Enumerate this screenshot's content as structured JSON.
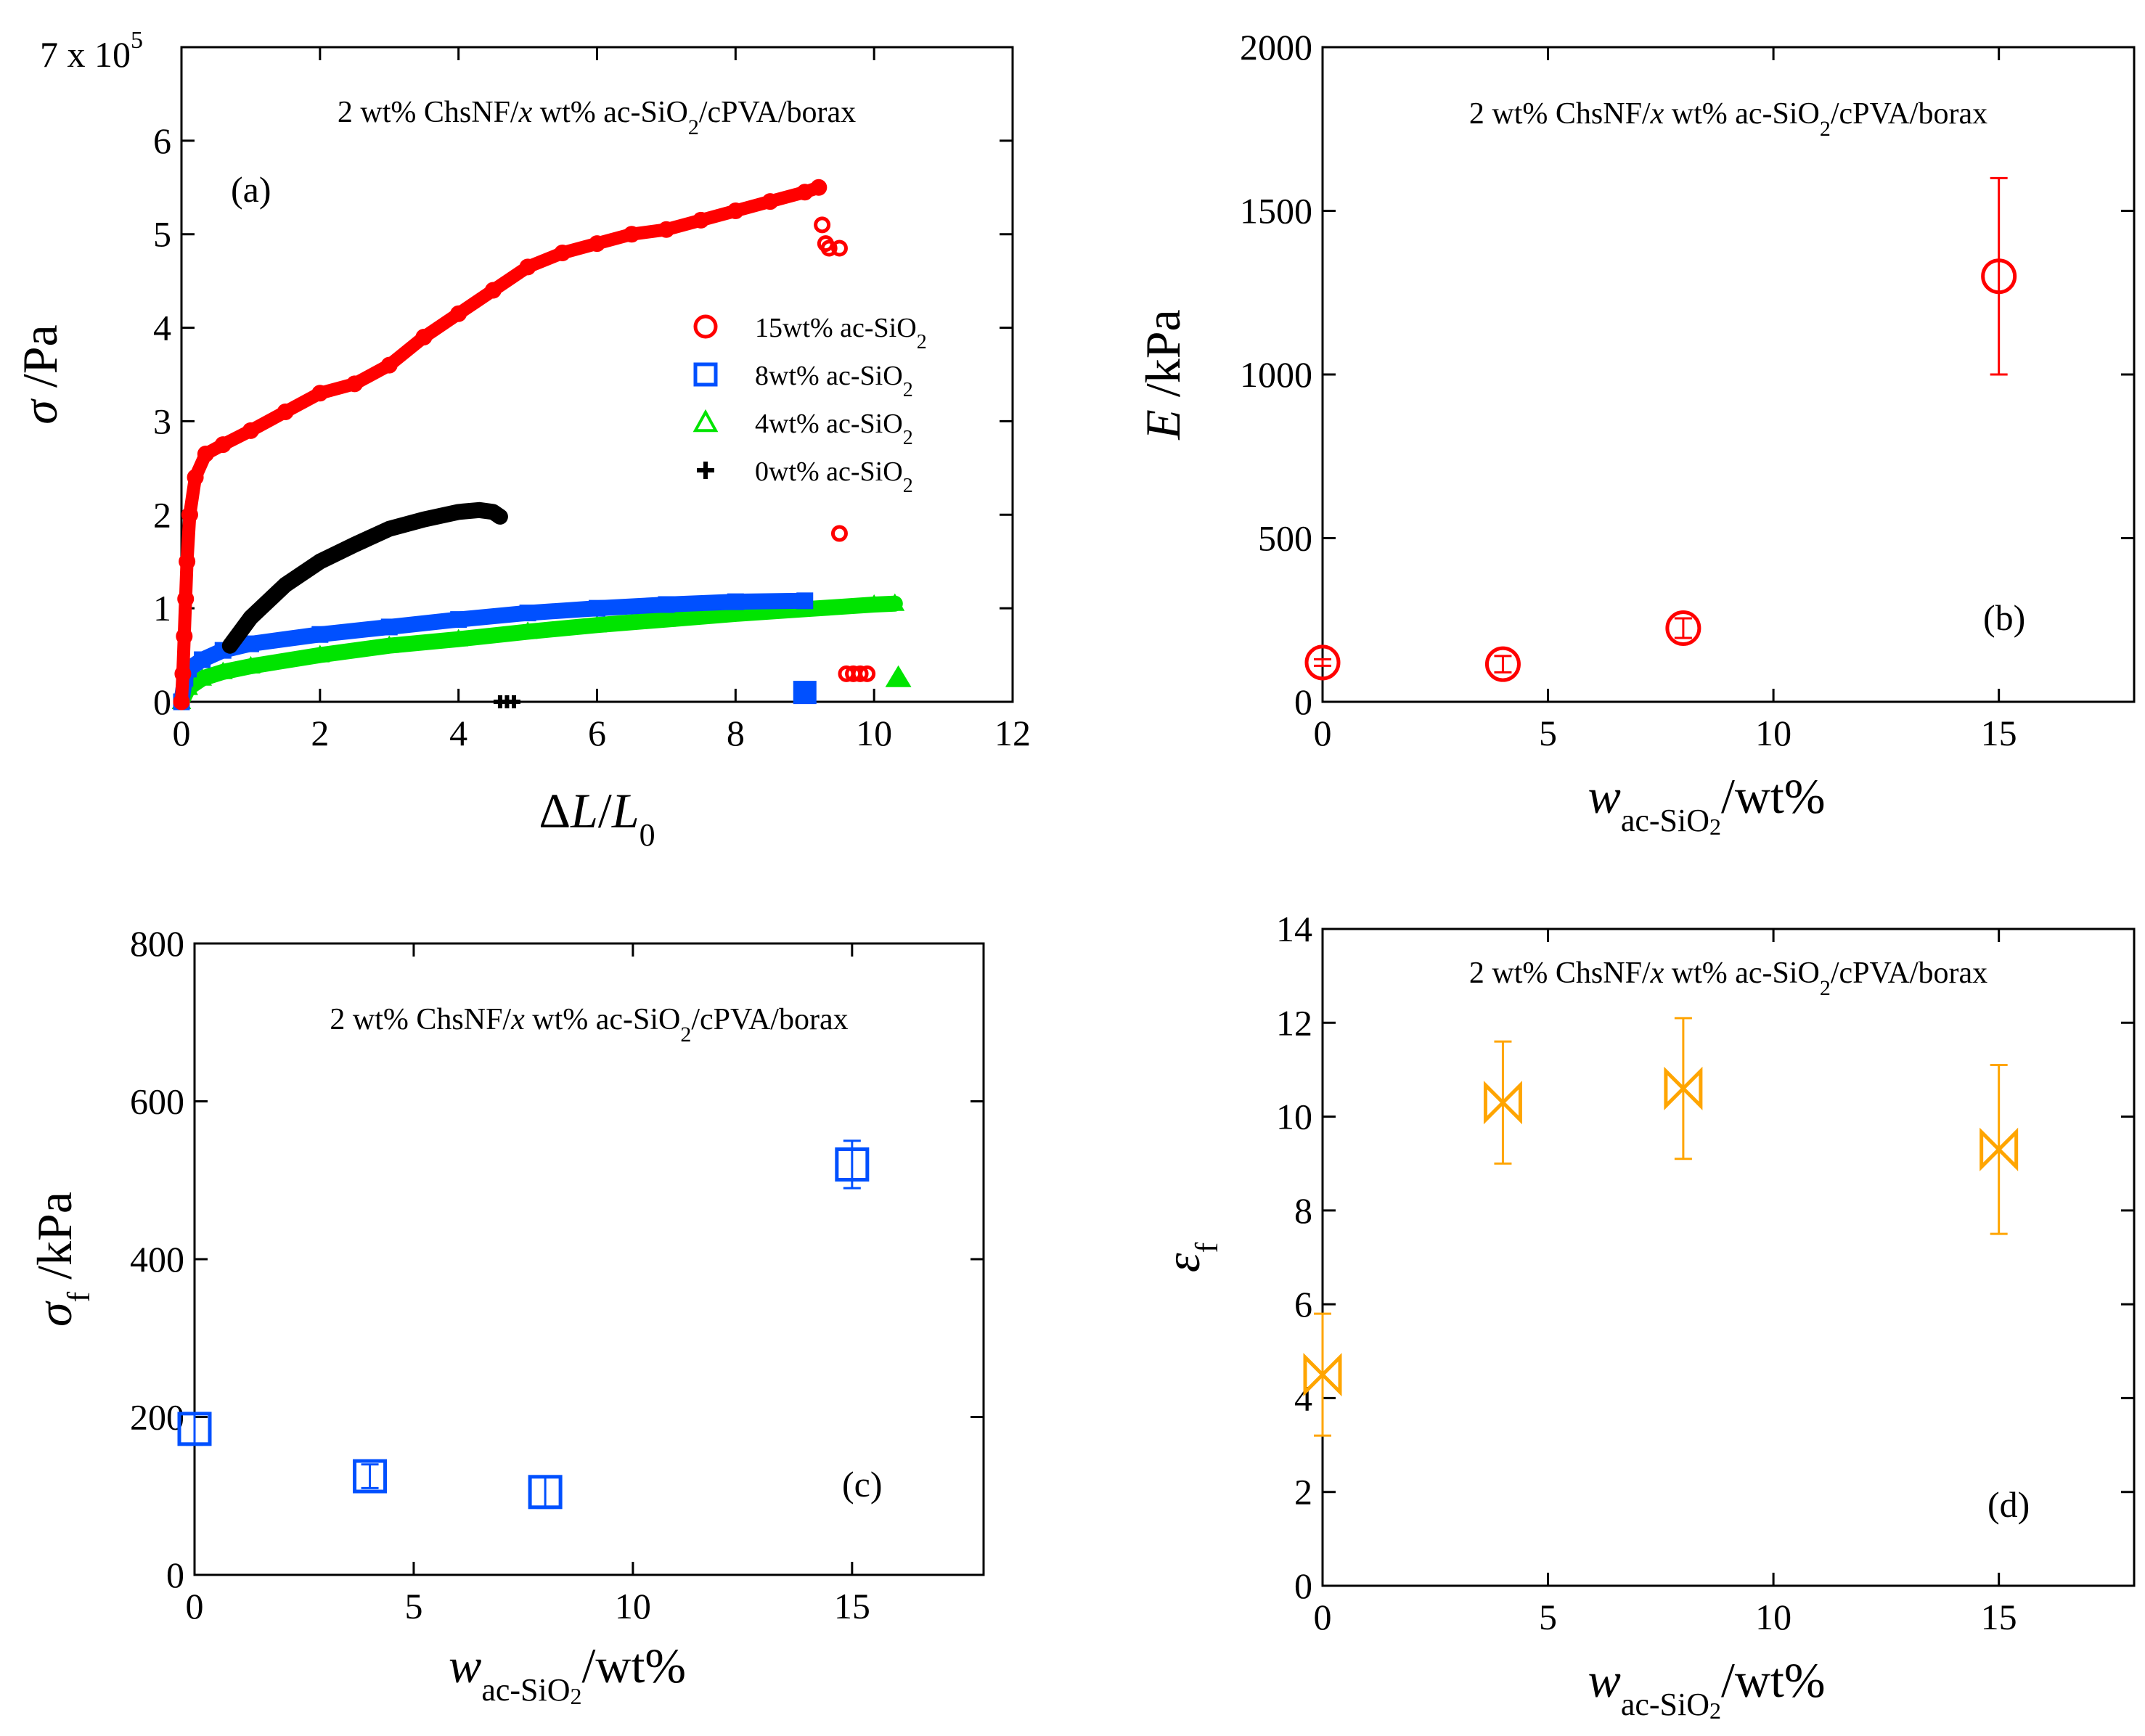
{
  "figure": {
    "note": "2 wt% ChsNF/x wt% ac-SiO2/cPVA/borax",
    "note_parts": {
      "pre": "2 wt% ChsNF/",
      "x": "x",
      "mid": " wt% ac-SiO",
      "sub": "2",
      "post": "/cPVA/borax"
    }
  },
  "chart_data": [
    {
      "id": "a",
      "type": "scatter",
      "panel_label": "(a)",
      "xlabel": {
        "delta": "Δ",
        "L": "L",
        "slash": "/",
        "L0": "L",
        "zero": "0"
      },
      "ylabel": {
        "sigma": "σ",
        "unit": " /Pa"
      },
      "y_multiplier": {
        "prefix": "7 x 10",
        "exp": "5"
      },
      "xlim": [
        0,
        12
      ],
      "ylim": [
        0,
        700000
      ],
      "xticks": [
        0,
        2,
        4,
        6,
        8,
        10,
        12
      ],
      "yticks": [
        0,
        100000,
        200000,
        300000,
        400000,
        500000,
        600000
      ],
      "ytick_labels": [
        "0",
        "1",
        "2",
        "3",
        "4",
        "5",
        "6"
      ],
      "legend": [
        {
          "label": "15wt% ac-SiO",
          "sub": "2",
          "marker": "circle",
          "color": "#ff0000"
        },
        {
          "label": "8wt% ac-SiO",
          "sub": "2",
          "marker": "square",
          "color": "#0050ff"
        },
        {
          "label": "4wt% ac-SiO",
          "sub": "2",
          "marker": "triangle",
          "color": "#00e400"
        },
        {
          "label": "0wt% ac-SiO",
          "sub": "2",
          "marker": "plus",
          "color": "#000000"
        }
      ],
      "series": [
        {
          "name": "15wt% ac-SiO2",
          "color": "#ff0000",
          "marker": "circle",
          "points": [
            [
              0,
              0
            ],
            [
              0.02,
              30000
            ],
            [
              0.04,
              70000
            ],
            [
              0.06,
              110000
            ],
            [
              0.08,
              150000
            ],
            [
              0.12,
              200000
            ],
            [
              0.2,
              240000
            ],
            [
              0.35,
              265000
            ],
            [
              0.6,
              275000
            ],
            [
              1.0,
              290000
            ],
            [
              1.5,
              310000
            ],
            [
              2.0,
              330000
            ],
            [
              2.5,
              340000
            ],
            [
              3.0,
              360000
            ],
            [
              3.5,
              390000
            ],
            [
              4.0,
              415000
            ],
            [
              4.5,
              440000
            ],
            [
              5.0,
              465000
            ],
            [
              5.5,
              480000
            ],
            [
              6.0,
              490000
            ],
            [
              6.5,
              500000
            ],
            [
              7.0,
              505000
            ],
            [
              7.5,
              515000
            ],
            [
              8.0,
              525000
            ],
            [
              8.5,
              535000
            ],
            [
              9.0,
              545000
            ],
            [
              9.2,
              550000
            ]
          ],
          "tail_points": [
            [
              9.25,
              510000
            ],
            [
              9.3,
              490000
            ],
            [
              9.35,
              485000
            ],
            [
              9.5,
              485000
            ],
            [
              9.5,
              180000
            ],
            [
              9.6,
              30000
            ],
            [
              9.7,
              30000
            ],
            [
              9.8,
              30000
            ],
            [
              9.9,
              30000
            ]
          ]
        },
        {
          "name": "8wt% ac-SiO2",
          "color": "#0050ff",
          "marker": "square",
          "points": [
            [
              0,
              0
            ],
            [
              0.05,
              25000
            ],
            [
              0.1,
              35000
            ],
            [
              0.3,
              45000
            ],
            [
              0.6,
              55000
            ],
            [
              1.0,
              62000
            ],
            [
              2.0,
              72000
            ],
            [
              3.0,
              80000
            ],
            [
              4.0,
              88000
            ],
            [
              5.0,
              95000
            ],
            [
              6.0,
              100000
            ],
            [
              7.0,
              104000
            ],
            [
              8.0,
              107000
            ],
            [
              9.0,
              108000
            ]
          ],
          "tail_points": [
            [
              9.0,
              10000
            ]
          ]
        },
        {
          "name": "4wt% ac-SiO2",
          "color": "#00e400",
          "marker": "triangle",
          "points": [
            [
              0,
              0
            ],
            [
              0.1,
              15000
            ],
            [
              0.3,
              25000
            ],
            [
              0.6,
              32000
            ],
            [
              1.0,
              38000
            ],
            [
              2.0,
              50000
            ],
            [
              3.0,
              60000
            ],
            [
              4.0,
              67000
            ],
            [
              5.0,
              75000
            ],
            [
              6.0,
              82000
            ],
            [
              7.0,
              88000
            ],
            [
              8.0,
              94000
            ],
            [
              9.0,
              99000
            ],
            [
              10.0,
              104000
            ],
            [
              10.3,
              105000
            ]
          ],
          "tail_points": [
            [
              10.35,
              25000
            ]
          ]
        },
        {
          "name": "0wt% ac-SiO2",
          "color": "#000000",
          "marker": "plus",
          "points": [
            [
              0.7,
              60000
            ],
            [
              1.0,
              90000
            ],
            [
              1.5,
              125000
            ],
            [
              2.0,
              150000
            ],
            [
              2.5,
              168000
            ],
            [
              3.0,
              185000
            ],
            [
              3.5,
              195000
            ],
            [
              4.0,
              203000
            ],
            [
              4.3,
              205000
            ],
            [
              4.5,
              203000
            ],
            [
              4.6,
              198000
            ]
          ],
          "tail_points": [
            [
              4.6,
              0
            ],
            [
              4.7,
              0
            ],
            [
              4.8,
              0
            ]
          ]
        }
      ]
    },
    {
      "id": "b",
      "type": "scatter",
      "panel_label": "(b)",
      "xlabel": {
        "w": "w",
        "sub": "ac-SiO",
        "subsub": "2",
        "unit": "/wt%"
      },
      "ylabel": {
        "sym": "E",
        "unit": " /kPa"
      },
      "xlim": [
        0,
        18
      ],
      "ylim": [
        0,
        2000
      ],
      "xticks": [
        0,
        5,
        10,
        15
      ],
      "yticks": [
        0,
        500,
        1000,
        1500,
        2000
      ],
      "marker": "circle",
      "color": "#ff0000",
      "x": [
        0,
        4,
        8,
        15
      ],
      "y": [
        120,
        115,
        225,
        1300
      ],
      "err": [
        10,
        25,
        30,
        300
      ]
    },
    {
      "id": "c",
      "type": "scatter",
      "panel_label": "(c)",
      "xlabel": {
        "w": "w",
        "sub": "ac-SiO",
        "subsub": "2",
        "unit": "/wt%"
      },
      "ylabel": {
        "sym": "σ",
        "symsub": "f",
        "unit": " /kPa"
      },
      "xlim": [
        0,
        18
      ],
      "ylim": [
        0,
        800
      ],
      "xticks": [
        0,
        5,
        10,
        15
      ],
      "yticks": [
        0,
        200,
        400,
        600,
        800
      ],
      "marker": "square",
      "color": "#0050ff",
      "x": [
        0,
        4,
        8,
        15
      ],
      "y": [
        185,
        125,
        105,
        520
      ],
      "err": [
        20,
        15,
        20,
        30
      ]
    },
    {
      "id": "d",
      "type": "scatter",
      "panel_label": "(d)",
      "xlabel": {
        "w": "w",
        "sub": "ac-SiO",
        "subsub": "2",
        "unit": "/wt%"
      },
      "ylabel": {
        "sym": "ε",
        "symsub": "f",
        "unit": ""
      },
      "xlim": [
        0,
        18
      ],
      "ylim": [
        0,
        14
      ],
      "xticks": [
        0,
        5,
        10,
        15
      ],
      "yticks": [
        0,
        2,
        4,
        6,
        8,
        10,
        12,
        14
      ],
      "marker": "bowtie",
      "color": "#ffa500",
      "x": [
        0,
        4,
        8,
        15
      ],
      "y": [
        4.5,
        10.3,
        10.6,
        9.3
      ],
      "err": [
        1.3,
        1.3,
        1.5,
        1.8
      ]
    }
  ]
}
